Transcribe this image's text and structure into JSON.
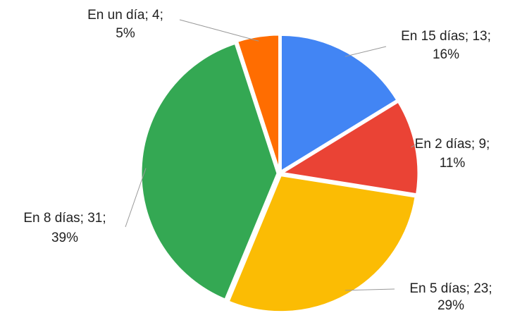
{
  "chart_data": {
    "type": "pie",
    "categories": [
      "En 15 días",
      "En 2 días",
      "En 5 días",
      "En 8 días",
      "En un día"
    ],
    "labels": [
      "En 15 días; 13;",
      "En 2 días; 9;",
      "En 5 días; 23;",
      "En 8 días; 31;",
      "En un día; 4;"
    ],
    "values": [
      13,
      9,
      23,
      31,
      4
    ],
    "value_labels": [
      "16%",
      "11%",
      "29%",
      "39%",
      "5%"
    ],
    "colors": [
      "#4285f4",
      "#ea4335",
      "#fbbc04",
      "#34a853",
      "#ff6d01"
    ]
  }
}
